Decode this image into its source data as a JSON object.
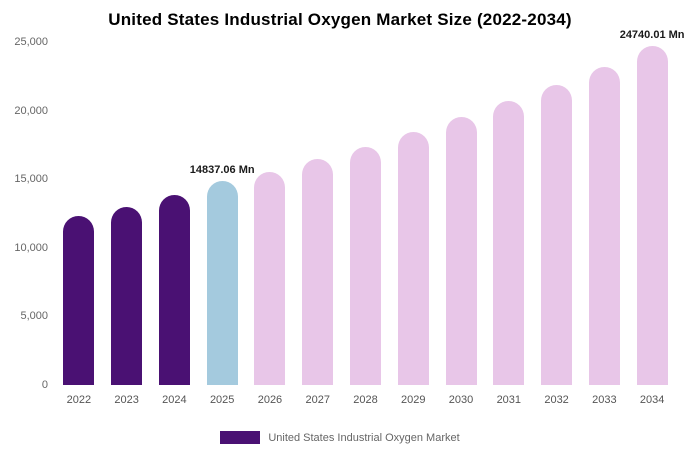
{
  "title": "United States Industrial Oxygen Market Size (2022-2034)",
  "legend": {
    "label": "United States Industrial Oxygen Market",
    "swatch_color": "#4a1173"
  },
  "annotations": [
    {
      "year": "2025",
      "text": "14837.06 Mn"
    },
    {
      "year": "2034",
      "text": "24740.01 Mn"
    }
  ],
  "colors": {
    "historical_bar": "#4a1173",
    "base_year_bar": "#a4cade",
    "forecast_bar": "#e8c6e8",
    "axis_label": "#666666",
    "title": "#000000",
    "background": "#ffffff"
  },
  "chart_data": {
    "type": "bar",
    "title": "United States Industrial Oxygen Market Size (2022-2034)",
    "categories": [
      "2022",
      "2023",
      "2024",
      "2025",
      "2026",
      "2027",
      "2028",
      "2029",
      "2030",
      "2031",
      "2032",
      "2033",
      "2034"
    ],
    "values": [
      12300,
      13000,
      13850,
      14837.06,
      15550,
      16450,
      17350,
      18450,
      19500,
      20700,
      21850,
      23150,
      24740.01
    ],
    "bar_colors": [
      "#4a1173",
      "#4a1173",
      "#4a1173",
      "#a4cade",
      "#e8c6e8",
      "#e8c6e8",
      "#e8c6e8",
      "#e8c6e8",
      "#e8c6e8",
      "#e8c6e8",
      "#e8c6e8",
      "#e8c6e8",
      "#e8c6e8"
    ],
    "unit": "Mn",
    "xlabel": "",
    "ylabel": "",
    "ylim": [
      0,
      25000
    ],
    "ytick_values": [
      0,
      5000,
      10000,
      15000,
      20000,
      25000
    ],
    "ytick_labels": [
      "0",
      "5,000",
      "10,000",
      "15,000",
      "20,000",
      "25,000"
    ],
    "grid": false,
    "legend_position": "bottom"
  }
}
